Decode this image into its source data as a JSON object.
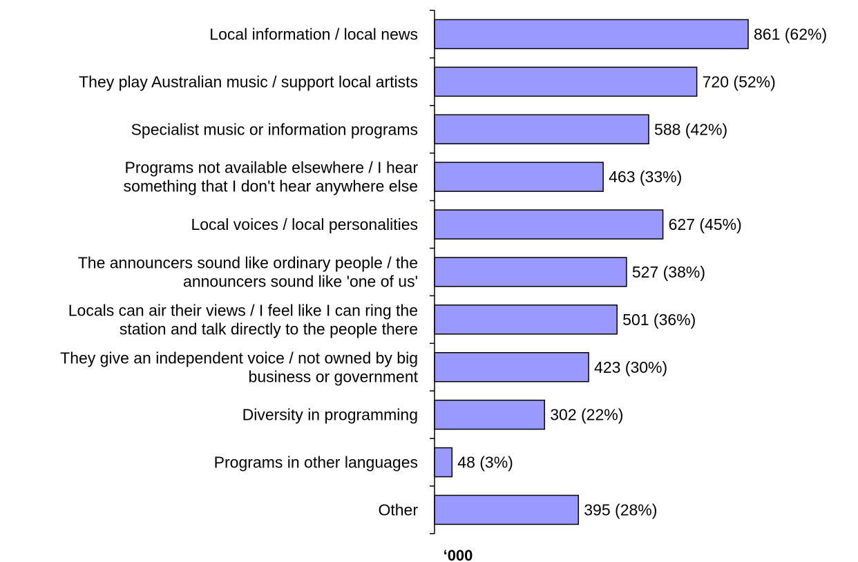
{
  "chart_data": {
    "type": "bar",
    "orientation": "horizontal",
    "categories": [
      [
        "Local information / local news"
      ],
      [
        "They play Australian music / support local artists"
      ],
      [
        "Specialist music or information programs"
      ],
      [
        "Programs not available elsewhere / I hear",
        "something that I don't hear anywhere else"
      ],
      [
        "Local voices / local personalities"
      ],
      [
        "The announcers sound like ordinary people / the",
        "announcers sound like 'one of us'"
      ],
      [
        "Locals can air their views / I feel like I can ring the",
        "station and talk directly to the people there"
      ],
      [
        "They give an independent voice / not owned by big",
        "business or government"
      ],
      [
        "Diversity in programming"
      ],
      [
        "Programs in other languages"
      ],
      [
        "Other"
      ]
    ],
    "values": [
      861,
      720,
      588,
      463,
      627,
      527,
      501,
      423,
      302,
      48,
      395
    ],
    "percent_labels": [
      "(62%)",
      "(52%)",
      "(42%)",
      "(33%)",
      "(45%)",
      "(38%)",
      "(36%)",
      "(30%)",
      "(22%)",
      "(3%)",
      "(28%)"
    ],
    "xlabel": "‘000",
    "xlim": [
      0,
      1150
    ],
    "bar_color": "#9999ff",
    "grid": false,
    "legend": "none"
  }
}
